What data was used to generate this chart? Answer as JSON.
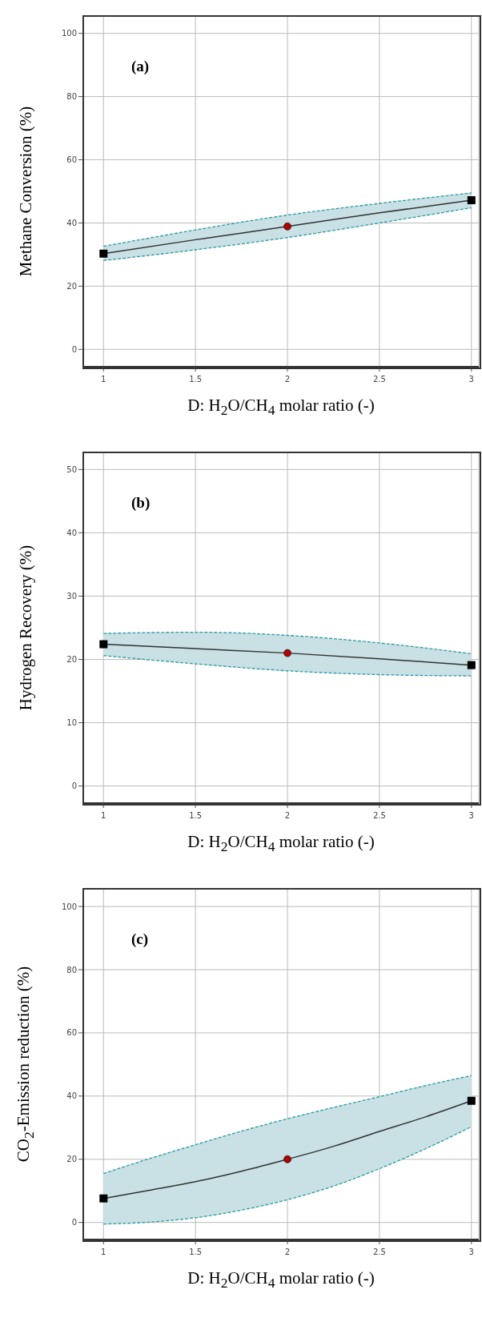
{
  "chart_data": [
    {
      "type": "line",
      "annotations": [
        "(a)"
      ],
      "xlabel": "D: H$_{2}$O/CH$_{4}$ molar ratio (-)",
      "ylabel": "Methane Conversion (%)",
      "xlim": [
        0.89,
        3.04
      ],
      "xticks": [
        1,
        1.5,
        2,
        2.5,
        3
      ],
      "ylim": [
        -5.5,
        105.5
      ],
      "yticks": [
        0,
        20,
        40,
        60,
        80,
        100
      ],
      "grid": true,
      "line_style": "solid",
      "series": [
        {
          "type": "line",
          "color": "#333333",
          "marker": "none",
          "x": [
            1,
            1.5,
            2,
            2.5,
            3
          ],
          "values": [
            30.3,
            34.7,
            38.9,
            43.2,
            47.2
          ],
          "lower": [
            28.1,
            31.5,
            35.4,
            40.0,
            44.8
          ],
          "upper": [
            32.6,
            37.8,
            42.5,
            46.2,
            49.5
          ]
        },
        {
          "type": "line",
          "color": "#2a9aa8",
          "marker": "none",
          "line_style": "dashed",
          "x": [
            1,
            1.5,
            2,
            2.5,
            3
          ],
          "values": [
            32.6,
            37.8,
            42.5,
            46.2,
            49.5
          ]
        },
        {
          "type": "line",
          "color": "#2a9aa8",
          "marker": "none",
          "line_style": "dashed",
          "x": [
            1,
            1.5,
            2,
            2.5,
            3
          ],
          "values": [
            28.1,
            31.5,
            35.4,
            40.0,
            44.8
          ]
        },
        {
          "type": "scatter",
          "color": "#000000",
          "marker": "square",
          "x": [
            1,
            3
          ],
          "values": [
            30.3,
            47.2
          ]
        },
        {
          "type": "scatter",
          "color": "#b00000",
          "marker": "circle",
          "x": [
            2
          ],
          "values": [
            38.9
          ]
        }
      ]
    },
    {
      "type": "line",
      "annotations": [
        "(b)"
      ],
      "xlabel": "D: H$_{2}$O/CH$_{4}$ molar ratio (-)",
      "ylabel": "Hydrogen Recovery (%)",
      "xlim": [
        0.89,
        3.04
      ],
      "xticks": [
        1,
        1.5,
        2,
        2.5,
        3
      ],
      "ylim": [
        -2.7,
        52.7
      ],
      "yticks": [
        0,
        10,
        20,
        30,
        40,
        50
      ],
      "grid": true,
      "line_style": "solid",
      "series": [
        {
          "type": "line",
          "color": "#333333",
          "marker": "none",
          "x": [
            1,
            1.5,
            2,
            2.5,
            3
          ],
          "values": [
            22.4,
            21.7,
            21.0,
            20.1,
            19.1
          ],
          "lower": [
            20.6,
            19.3,
            18.2,
            17.6,
            17.4
          ],
          "upper": [
            24.1,
            24.3,
            23.8,
            22.6,
            20.9
          ]
        },
        {
          "type": "line",
          "color": "#2a9aa8",
          "marker": "none",
          "line_style": "dashed",
          "x": [
            1,
            1.5,
            2,
            2.5,
            3
          ],
          "values": [
            24.1,
            24.3,
            23.8,
            22.6,
            20.9
          ]
        },
        {
          "type": "line",
          "color": "#2a9aa8",
          "marker": "none",
          "line_style": "dashed",
          "x": [
            1,
            1.5,
            2,
            2.5,
            3
          ],
          "values": [
            20.6,
            19.3,
            18.2,
            17.6,
            17.4
          ]
        },
        {
          "type": "scatter",
          "color": "#000000",
          "marker": "square",
          "x": [
            1,
            3
          ],
          "values": [
            22.4,
            19.1
          ]
        },
        {
          "type": "scatter",
          "color": "#b00000",
          "marker": "circle",
          "x": [
            2
          ],
          "values": [
            21.0
          ]
        }
      ]
    },
    {
      "type": "line",
      "annotations": [
        "(c)"
      ],
      "xlabel": "D: H$_{2}$O/CH$_{4}$ molar ratio (-)",
      "ylabel": "CO$_{2}$-Emission reduction (%)",
      "xlim": [
        0.89,
        3.04
      ],
      "xticks": [
        1,
        1.5,
        2,
        2.5,
        3
      ],
      "ylim": [
        -5.4,
        105.6
      ],
      "yticks": [
        0,
        20,
        40,
        60,
        80,
        100
      ],
      "grid": true,
      "line_style": "solid",
      "series": [
        {
          "type": "line",
          "color": "#333333",
          "marker": "none",
          "x": [
            1,
            1.25,
            1.5,
            1.75,
            2,
            2.25,
            2.5,
            2.75,
            3
          ],
          "values": [
            7.6,
            10.2,
            12.9,
            16.2,
            20.0,
            24.1,
            28.8,
            33.4,
            38.5
          ],
          "lower": [
            -0.5,
            0.1,
            1.5,
            3.9,
            7.2,
            11.5,
            17.0,
            23.3,
            30.3
          ],
          "upper": [
            15.5,
            20.2,
            24.6,
            28.9,
            32.8,
            36.4,
            39.8,
            43.3,
            46.5
          ]
        },
        {
          "type": "line",
          "color": "#2a9aa8",
          "marker": "none",
          "line_style": "dashed",
          "x": [
            1,
            1.25,
            1.5,
            1.75,
            2,
            2.25,
            2.5,
            2.75,
            3
          ],
          "values": [
            15.5,
            20.2,
            24.6,
            28.9,
            32.8,
            36.4,
            39.8,
            43.3,
            46.5
          ]
        },
        {
          "type": "line",
          "color": "#2a9aa8",
          "marker": "none",
          "line_style": "dashed",
          "x": [
            1,
            1.25,
            1.5,
            1.75,
            2,
            2.25,
            2.5,
            2.75,
            3
          ],
          "values": [
            -0.5,
            0.1,
            1.5,
            3.9,
            7.2,
            11.5,
            17.0,
            23.3,
            30.3
          ]
        },
        {
          "type": "scatter",
          "color": "#000000",
          "marker": "square",
          "x": [
            1,
            3
          ],
          "values": [
            7.6,
            38.5
          ]
        },
        {
          "type": "scatter",
          "color": "#b00000",
          "marker": "circle",
          "x": [
            2
          ],
          "values": [
            20.0
          ]
        }
      ]
    }
  ]
}
